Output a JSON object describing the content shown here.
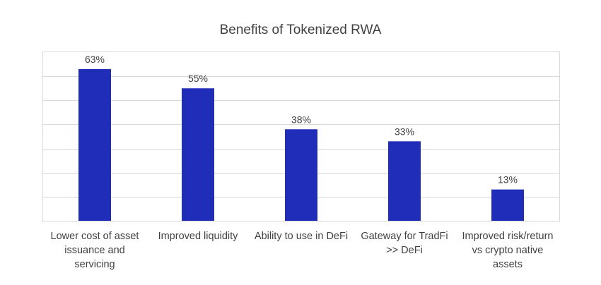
{
  "chart_data": {
    "type": "bar",
    "title": "Benefits of Tokenized RWA",
    "xlabel": "",
    "ylabel": "",
    "categories": [
      [
        "Lower cost of asset",
        "issuance and",
        "servicing"
      ],
      [
        "Improved liquidity"
      ],
      [
        "Ability to use in DeFi"
      ],
      [
        "Gateway for TradFi",
        ">> DeFi"
      ],
      [
        "Improved risk/return",
        "vs crypto native",
        "assets"
      ]
    ],
    "values": [
      63,
      55,
      38,
      33,
      13
    ],
    "data_labels": [
      "63%",
      "55%",
      "38%",
      "33%",
      "13%"
    ],
    "unit": "%",
    "ylim": [
      0,
      70
    ],
    "gridlines": [
      0,
      10,
      20,
      30,
      40,
      50,
      60,
      70
    ],
    "grid": true,
    "legend": "none",
    "bar_color": "#1f2db8",
    "grid_color": "#d9d9d9",
    "text_color": "#404040"
  }
}
